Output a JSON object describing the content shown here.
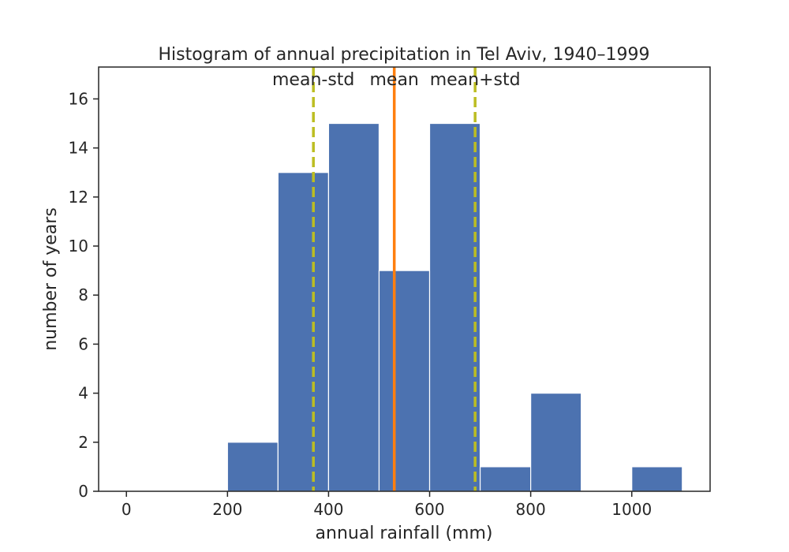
{
  "chart_data": {
    "type": "bar",
    "title": "Histogram of annual precipitation in Tel Aviv, 1940–1999",
    "xlabel": "annual rainfall (mm)",
    "ylabel": "number of years",
    "bins": [
      {
        "x0": 200,
        "x1": 300,
        "count": 2
      },
      {
        "x0": 300,
        "x1": 400,
        "count": 13
      },
      {
        "x0": 400,
        "x1": 500,
        "count": 15
      },
      {
        "x0": 500,
        "x1": 600,
        "count": 9
      },
      {
        "x0": 600,
        "x1": 700,
        "count": 15
      },
      {
        "x0": 700,
        "x1": 800,
        "count": 1
      },
      {
        "x0": 800,
        "x1": 900,
        "count": 4
      },
      {
        "x0": 900,
        "x1": 1000,
        "count": 0
      },
      {
        "x0": 1000,
        "x1": 1100,
        "count": 1
      }
    ],
    "xlim": [
      -55,
      1155
    ],
    "ylim": [
      0,
      17.3
    ],
    "xticks": [
      0,
      200,
      400,
      600,
      800,
      1000
    ],
    "yticks": [
      0,
      2,
      4,
      6,
      8,
      10,
      12,
      14,
      16
    ],
    "grid": false,
    "bar_color": "#4c72b0",
    "reference_lines": [
      {
        "label": "mean-std",
        "x": 370,
        "style": "dashed",
        "color": "#bcbd22"
      },
      {
        "label": "mean",
        "x": 530,
        "style": "solid",
        "color": "#ff7f0e"
      },
      {
        "label": "mean+std",
        "x": 690,
        "style": "dashed",
        "color": "#bcbd22"
      }
    ]
  }
}
